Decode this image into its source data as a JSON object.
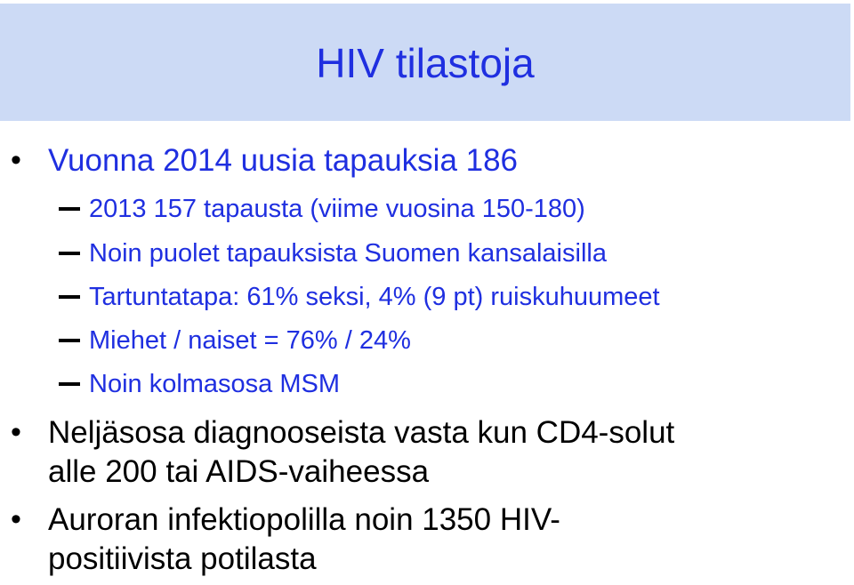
{
  "slide": {
    "title": "HIV tilastoja",
    "colors": {
      "title_band": "#ccdaf5",
      "accent_text": "#1f2fe0",
      "body_text": "#000000"
    },
    "bullets": [
      {
        "text": "Vuonna 2014 uusia tapauksia 186",
        "sub": [
          "2013 157 tapausta (viime vuosina 150-180)",
          "Noin puolet tapauksista Suomen kansalaisilla",
          "Tartuntatapa: 61% seksi, 4% (9 pt) ruiskuhuumeet",
          "Miehet / naiset = 76% / 24%",
          "Noin kolmasosa MSM"
        ]
      },
      {
        "lines": [
          "Neljäsosa diagnooseista vasta kun CD4-solut",
          "alle 200 tai AIDS-vaiheessa"
        ]
      },
      {
        "lines": [
          "Auroran infektiopolilla noin 1350 HIV-",
          "positiivista potilasta"
        ]
      }
    ]
  }
}
